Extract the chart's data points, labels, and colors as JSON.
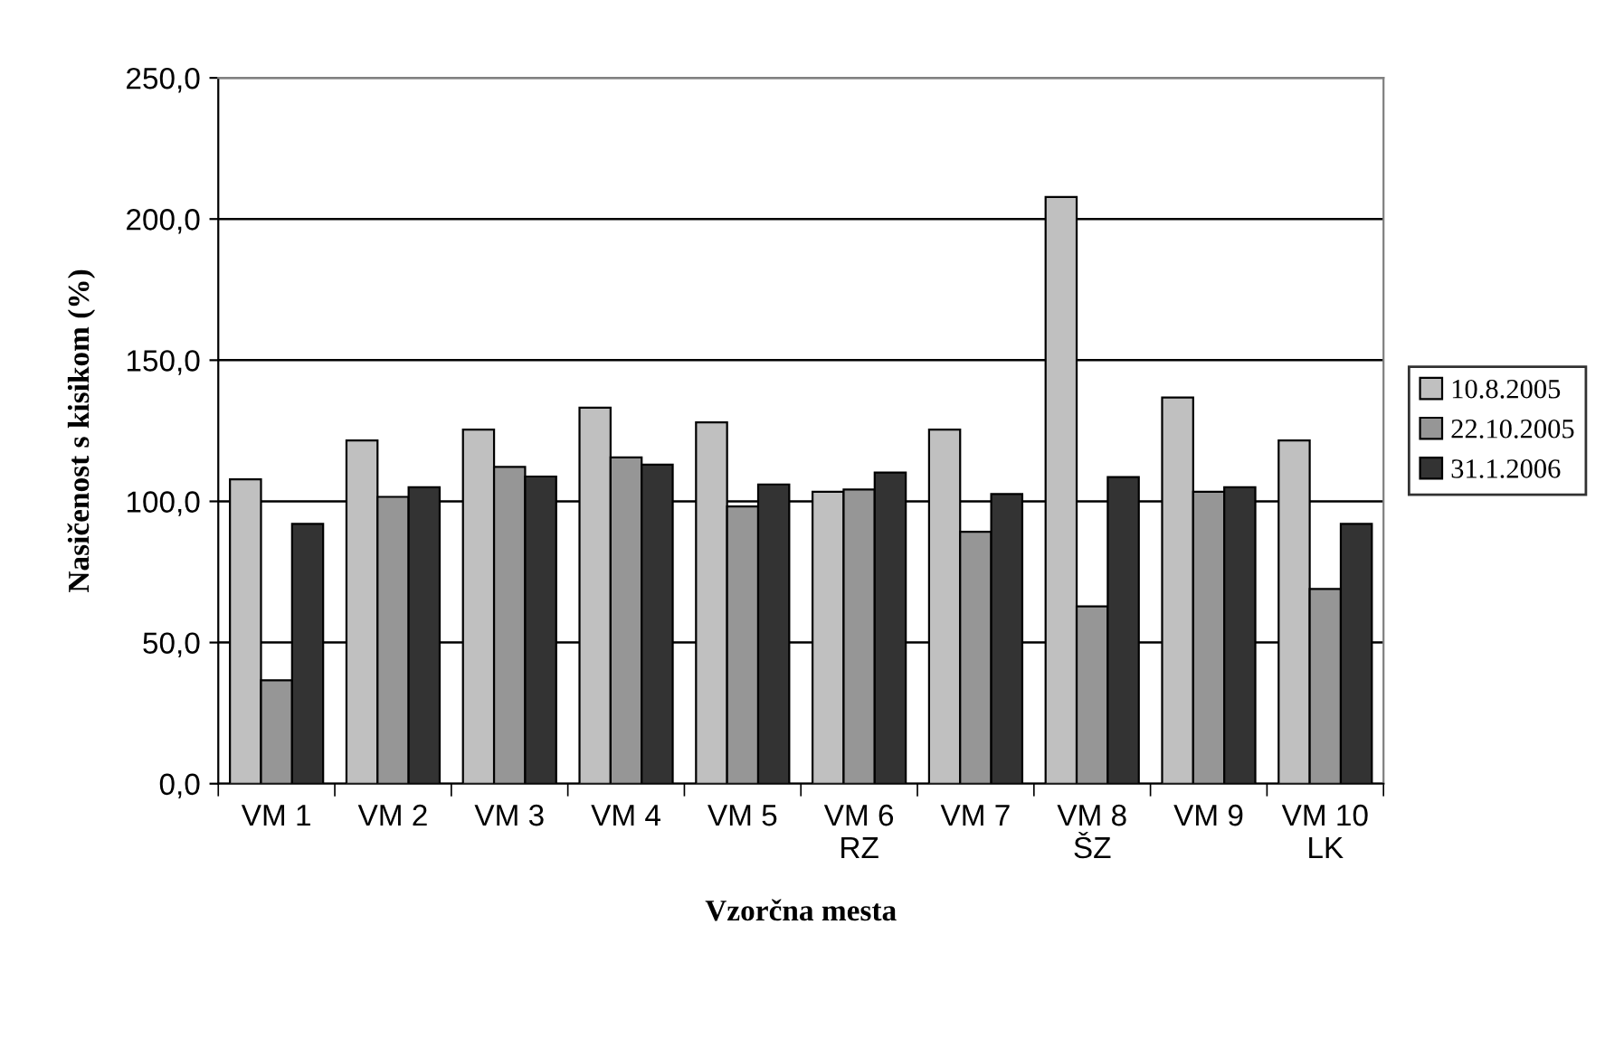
{
  "chart_data": {
    "type": "bar",
    "xlabel": "Vzorčna mesta",
    "ylabel": "Nasičenost s kisikom (%)",
    "categories": [
      "VM 1",
      "VM 2",
      "VM 3",
      "VM 4",
      "VM 5",
      "VM 6\nRZ",
      "VM 7",
      "VM 8\nŠZ",
      "VM 9",
      "VM 10\nLK"
    ],
    "series": [
      {
        "name": "10.8.2005",
        "color": "#c0c0c0",
        "values": [
          107.8,
          121.6,
          125.4,
          133.2,
          128.0,
          103.4,
          125.4,
          207.8,
          136.8,
          121.6
        ]
      },
      {
        "name": "22.10.2005",
        "color": "#969696",
        "values": [
          36.6,
          101.6,
          112.2,
          115.6,
          98.2,
          104.2,
          89.2,
          62.8,
          103.4,
          69.0
        ]
      },
      {
        "name": "31.1.2006",
        "color": "#333333",
        "values": [
          92.0,
          105.0,
          108.8,
          113.0,
          106.0,
          110.2,
          102.6,
          108.6,
          105.0,
          92.0
        ]
      }
    ],
    "ylim": [
      0,
      250
    ],
    "yticks": [
      {
        "value": 0,
        "label": "0,0"
      },
      {
        "value": 50,
        "label": "50,0"
      },
      {
        "value": 100,
        "label": "100,0"
      },
      {
        "value": 150,
        "label": "150,0"
      },
      {
        "value": 200,
        "label": "200,0"
      },
      {
        "value": 250,
        "label": "250,0"
      }
    ],
    "grid": "y",
    "legend": "right"
  }
}
